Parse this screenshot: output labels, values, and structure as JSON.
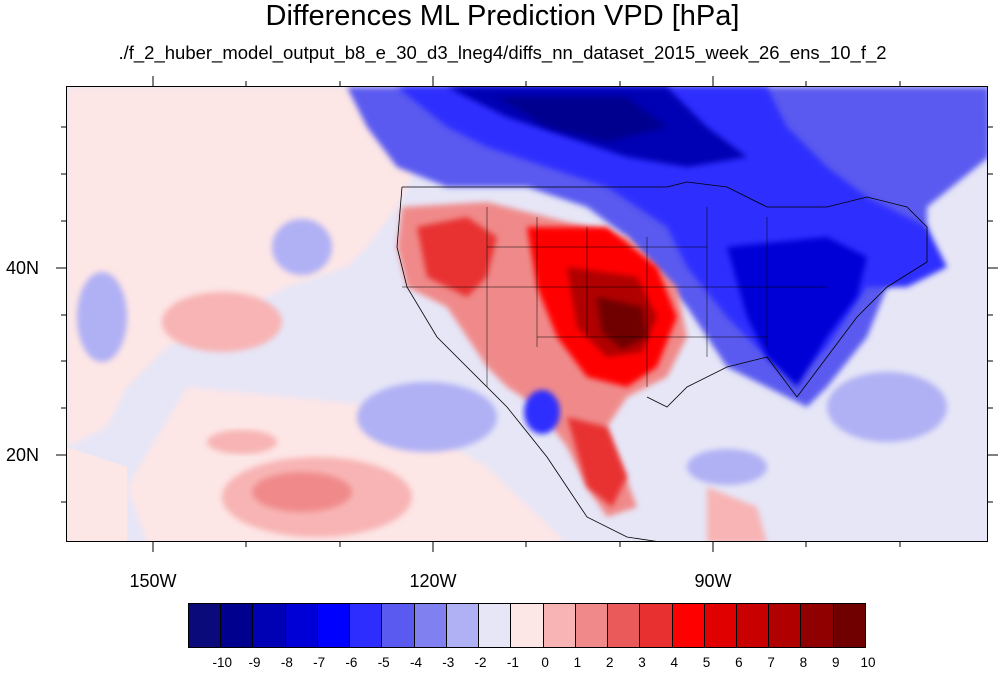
{
  "title": "Differences ML Prediction VPD [hPa]",
  "subtitle": "./f_2_huber_model_output_b8_e_30_d3_lneg4/diffs_nn_dataset_2015_week_26_ens_10_f_2",
  "map": {
    "lat_labels": [
      "40N",
      "20N"
    ],
    "lon_labels": [
      "150W",
      "120W",
      "90W"
    ]
  },
  "colorbar": {
    "labels": [
      "-10",
      "-9",
      "-8",
      "-7",
      "-6",
      "-5",
      "-4",
      "-3",
      "-2",
      "-1",
      "0",
      "1",
      "2",
      "3",
      "4",
      "5",
      "6",
      "7",
      "8",
      "9",
      "10"
    ],
    "colors": [
      "#0a0a7a",
      "#00008f",
      "#0000b4",
      "#0000d6",
      "#0000ff",
      "#2d2dff",
      "#5a5af0",
      "#8080f0",
      "#b0b0f5",
      "#e6e6f7",
      "#fde6e6",
      "#f8b4b4",
      "#f08a8a",
      "#ea5a5a",
      "#e83030",
      "#ff0000",
      "#e00000",
      "#c80000",
      "#b00000",
      "#900000",
      "#700000"
    ]
  }
}
